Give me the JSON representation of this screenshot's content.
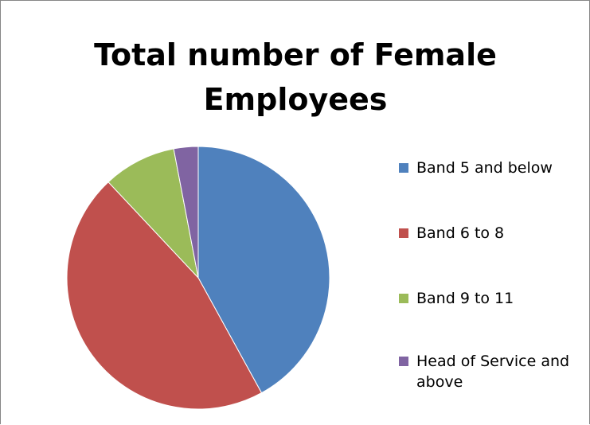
{
  "chart_data": {
    "type": "pie",
    "title": "Total number of Female Employees",
    "categories": [
      "Band 5 and below",
      "Band 6 to 8",
      "Band 9 to 11",
      "Head of Service and above"
    ],
    "values": [
      42,
      46,
      9,
      3
    ],
    "colors": [
      "#4f81bd",
      "#c0504d",
      "#9bbb59",
      "#8064a2"
    ],
    "start_angle_deg": 0,
    "direction": "clockwise",
    "legend_position": "right"
  }
}
